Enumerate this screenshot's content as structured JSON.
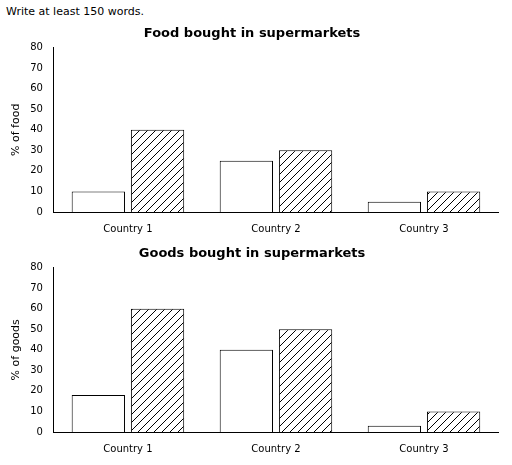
{
  "title": "Write at least 150 words.",
  "chart_data": [
    {
      "type": "bar",
      "title": "Food bought in supermarkets",
      "categories": [
        "Country 1",
        "Country 2",
        "Country 3"
      ],
      "y_label": "% of food",
      "series": [
        {
          "color": "#ffffff",
          "values": [
            10,
            25,
            5
          ]
        },
        {
          "color": "#ffffff",
          "values": [
            40,
            30,
            10
          ]
        }
      ],
      "ylim": [
        0,
        80
      ],
      "yticks": [
        0,
        10,
        20,
        30,
        40,
        50,
        60,
        70,
        80
      ],
      "grid": false
    },
    {
      "type": "bar",
      "title": "Goods bought in supermarkets",
      "categories": [
        "Country 1",
        "Country 2",
        "Country 3"
      ],
      "y_label": "% of goods",
      "series": [
        {
          "color": "#ffffff",
          "values": [
            18,
            40,
            3
          ]
        },
        {
          "color": "#ffffff",
          "values": [
            60,
            50,
            10
          ]
        }
      ],
      "ylim": [
        0,
        80
      ],
      "yticks": [
        0,
        10,
        20,
        30,
        40,
        50,
        60,
        70,
        80
      ],
      "grid": false
    }
  ]
}
